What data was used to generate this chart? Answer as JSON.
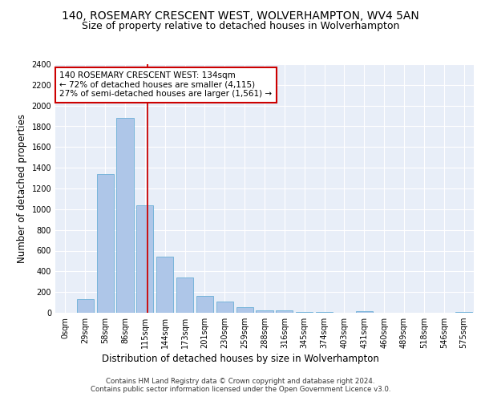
{
  "title1": "140, ROSEMARY CRESCENT WEST, WOLVERHAMPTON, WV4 5AN",
  "title2": "Size of property relative to detached houses in Wolverhampton",
  "xlabel": "Distribution of detached houses by size in Wolverhampton",
  "ylabel": "Number of detached properties",
  "categories": [
    "0sqm",
    "29sqm",
    "58sqm",
    "86sqm",
    "115sqm",
    "144sqm",
    "173sqm",
    "201sqm",
    "230sqm",
    "259sqm",
    "288sqm",
    "316sqm",
    "345sqm",
    "374sqm",
    "403sqm",
    "431sqm",
    "460sqm",
    "489sqm",
    "518sqm",
    "546sqm",
    "575sqm"
  ],
  "values": [
    0,
    130,
    1340,
    1880,
    1040,
    540,
    340,
    165,
    110,
    55,
    25,
    20,
    10,
    5,
    0,
    15,
    0,
    0,
    0,
    0,
    5
  ],
  "bar_color": "#aec6e8",
  "bar_edge_color": "#6aaed6",
  "marker_label": "140 ROSEMARY CRESCENT WEST: 134sqm",
  "annotation_line1": "← 72% of detached houses are smaller (4,115)",
  "annotation_line2": "27% of semi-detached houses are larger (1,561) →",
  "annotation_box_color": "#ffffff",
  "annotation_box_edge": "#cc0000",
  "marker_line_color": "#cc0000",
  "ylim": [
    0,
    2400
  ],
  "yticks": [
    0,
    200,
    400,
    600,
    800,
    1000,
    1200,
    1400,
    1600,
    1800,
    2000,
    2200,
    2400
  ],
  "footer1": "Contains HM Land Registry data © Crown copyright and database right 2024.",
  "footer2": "Contains public sector information licensed under the Open Government Licence v3.0.",
  "background_color": "#e8eef8",
  "title_fontsize": 10,
  "subtitle_fontsize": 9,
  "axis_label_fontsize": 8.5,
  "tick_fontsize": 7,
  "annotation_fontsize": 7.5
}
